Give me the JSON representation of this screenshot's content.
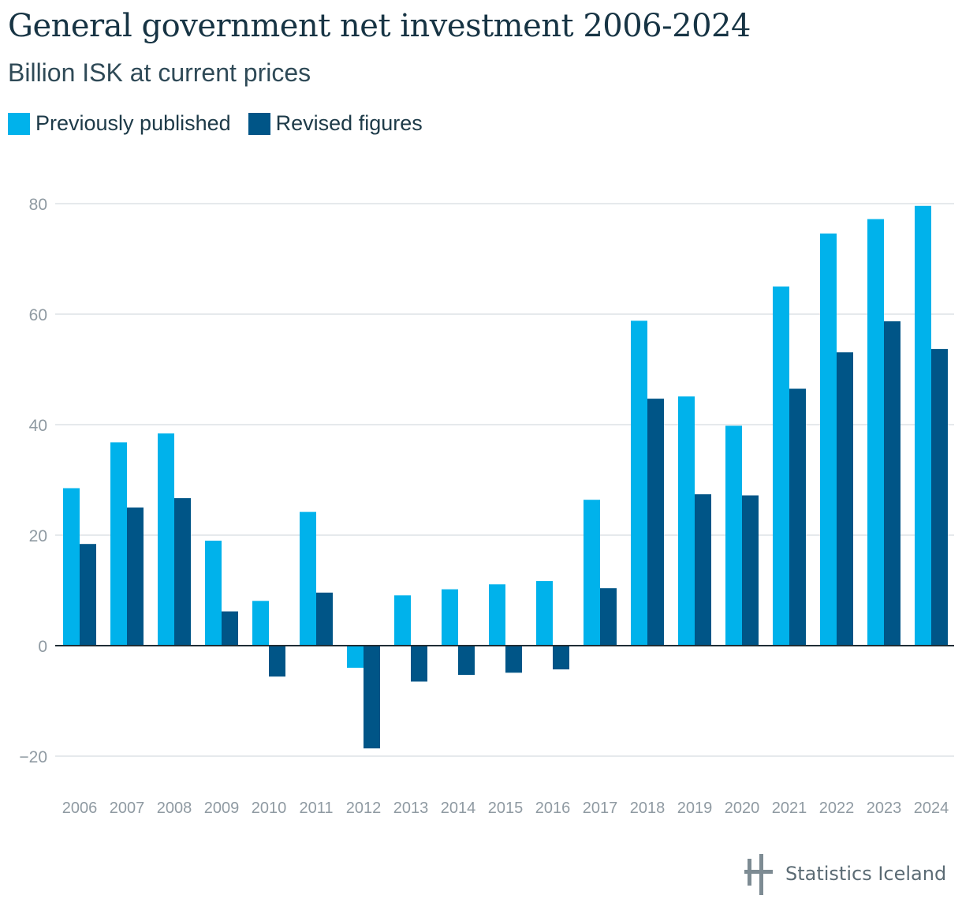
{
  "chart_data": {
    "type": "bar",
    "title": "General government net investment 2006-2024",
    "subtitle": "Billion ISK at current prices",
    "xlabel": "",
    "ylabel": "",
    "ylim": [
      -20,
      80
    ],
    "yticks": [
      -20,
      0,
      20,
      40,
      60,
      80
    ],
    "ytick_labels": [
      "−20",
      "0",
      "20",
      "40",
      "60",
      "80"
    ],
    "grid": true,
    "legend_position": "top-left",
    "categories": [
      "2006",
      "2007",
      "2008",
      "2009",
      "2010",
      "2011",
      "2012",
      "2013",
      "2014",
      "2015",
      "2016",
      "2017",
      "2018",
      "2019",
      "2020",
      "2021",
      "2022",
      "2023",
      "2024"
    ],
    "series": [
      {
        "name": "Previously published",
        "color": "#00b2eb",
        "values": [
          28.5,
          36.8,
          38.4,
          19.0,
          8.1,
          24.2,
          -4.0,
          9.1,
          10.2,
          11.1,
          11.7,
          26.4,
          58.8,
          45.1,
          39.8,
          65.0,
          74.6,
          77.2,
          79.6
        ]
      },
      {
        "name": "Revised figures",
        "color": "#005587",
        "values": [
          18.4,
          25.0,
          26.7,
          6.2,
          -5.6,
          9.6,
          -18.6,
          -6.5,
          -5.3,
          -4.9,
          -4.3,
          10.4,
          44.7,
          27.4,
          27.2,
          46.5,
          53.1,
          58.7,
          53.7
        ]
      }
    ]
  },
  "branding": {
    "logo_text": "Statistics Iceland",
    "logo_icon": "statistics-iceland-logo-icon"
  }
}
